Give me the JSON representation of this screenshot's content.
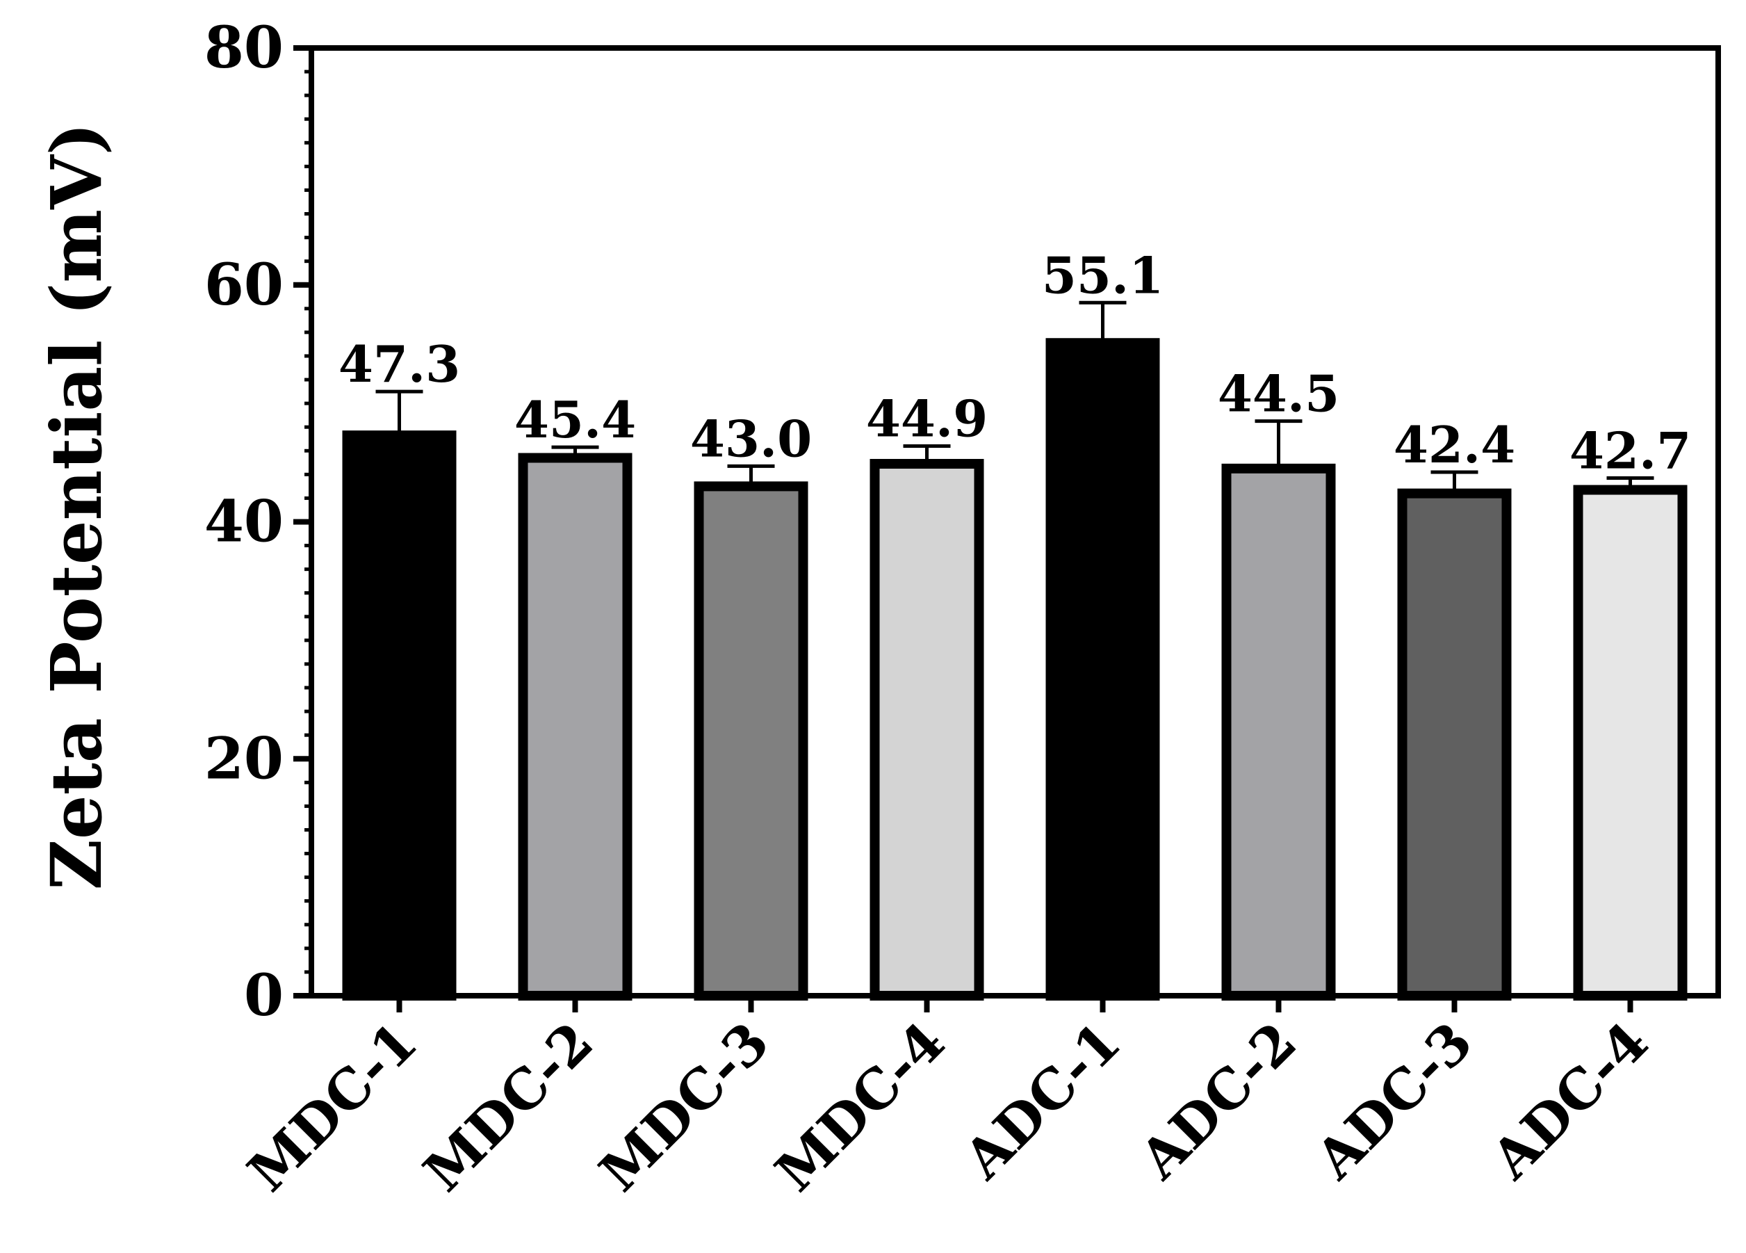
{
  "chart_data": {
    "type": "bar",
    "title": "",
    "xlabel": "",
    "ylabel": "Zeta Potential (mV)",
    "ylim": [
      0,
      80
    ],
    "yticks": [
      0,
      20,
      40,
      60,
      80
    ],
    "grid": false,
    "categories": [
      "MDC-1",
      "MDC-2",
      "MDC-3",
      "MDC-4",
      "ADC-1",
      "ADC-2",
      "ADC-3",
      "ADC-4"
    ],
    "values": [
      47.3,
      45.4,
      43.0,
      44.9,
      55.1,
      44.5,
      42.4,
      42.7
    ],
    "value_labels": [
      "47.3",
      "45.4",
      "43.0",
      "44.9",
      "55.1",
      "44.5",
      "42.4",
      "42.7"
    ],
    "errors": [
      3.7,
      0.9,
      1.7,
      1.5,
      3.4,
      4.0,
      1.8,
      1.0
    ],
    "colors": [
      "#000000",
      "#a3a3a6",
      "#808080",
      "#d4d4d4",
      "#000000",
      "#a3a3a6",
      "#606060",
      "#e6e6e6"
    ]
  }
}
